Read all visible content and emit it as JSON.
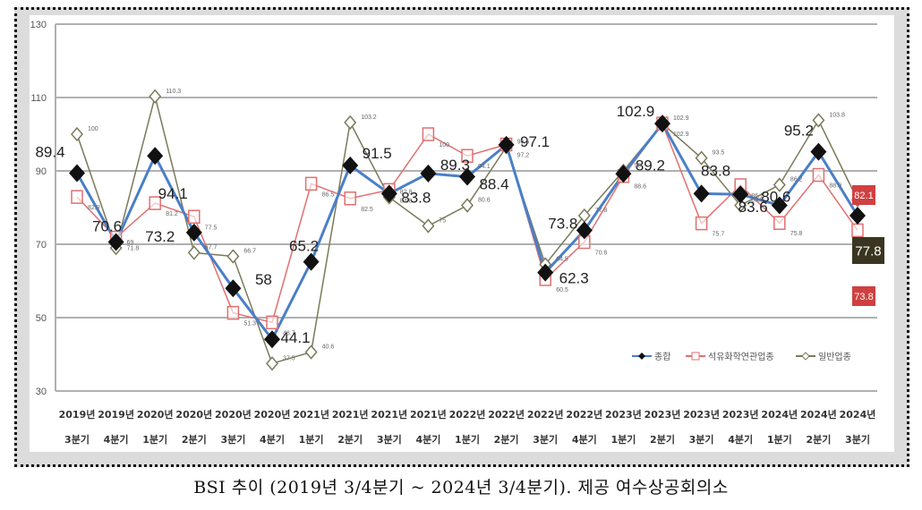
{
  "caption": "BSI 추이 (2019년 3/4분기 ~ 2024년 3/4분기). 제공 여수상공회의소",
  "colors": {
    "composite": "#4a7fc8",
    "petrochem": "#e07070",
    "general": "#7a7a5a",
    "marker_dark": "#111111",
    "badge_red": "#d04040",
    "badge_dark": "#3a3520",
    "grid": "#b0b0b0"
  },
  "chart_data": {
    "type": "line",
    "title": "",
    "xlabel": "",
    "ylabel": "",
    "ylim": [
      30,
      130
    ],
    "yticks": [
      30,
      50,
      70,
      90,
      110,
      130
    ],
    "grid": true,
    "legend_position": "lower-right inside plot",
    "categories": [
      [
        "2019년",
        "3분기"
      ],
      [
        "2019년",
        "4분기"
      ],
      [
        "2020년",
        "1분기"
      ],
      [
        "2020년",
        "2분기"
      ],
      [
        "2020년",
        "3분기"
      ],
      [
        "2020년",
        "4분기"
      ],
      [
        "2021년",
        "1분기"
      ],
      [
        "2021년",
        "2분기"
      ],
      [
        "2021년",
        "3분기"
      ],
      [
        "2021년",
        "4분기"
      ],
      [
        "2022년",
        "1분기"
      ],
      [
        "2022년",
        "2분기"
      ],
      [
        "2022년",
        "3분기"
      ],
      [
        "2022년",
        "4분기"
      ],
      [
        "2023년",
        "1분기"
      ],
      [
        "2023년",
        "2분기"
      ],
      [
        "2023년",
        "3분기"
      ],
      [
        "2023년",
        "4분기"
      ],
      [
        "2024년",
        "1분기"
      ],
      [
        "2024년",
        "2분기"
      ],
      [
        "2024년",
        "3분기"
      ]
    ],
    "series": [
      {
        "name": "종합",
        "marker": "filled-diamond",
        "values": [
          89.4,
          70.6,
          94.1,
          73.2,
          58,
          44.1,
          65.2,
          91.5,
          83.8,
          89.3,
          88.4,
          97.1,
          62.3,
          73.8,
          89.2,
          102.9,
          83.8,
          83.6,
          80.6,
          95.2,
          77.8
        ]
      },
      {
        "name": "석유화학연관업종",
        "marker": "open-square",
        "values": [
          82.9,
          71.8,
          81.2,
          77.5,
          51.3,
          48.7,
          86.5,
          82.5,
          84.8,
          100,
          94.1,
          97.2,
          60.5,
          70.6,
          88.6,
          102.9,
          75.7,
          86.1,
          75.8,
          88.9,
          73.8
        ]
      },
      {
        "name": "일반업종",
        "marker": "open-diamond",
        "values": [
          100,
          69,
          110.3,
          67.7,
          66.7,
          37.5,
          40.6,
          103.2,
          82.8,
          75,
          80.6,
          96.5,
          64.5,
          77.8,
          90,
          102.9,
          93.5,
          80.6,
          86.2,
          103.8,
          82.1
        ]
      }
    ],
    "end_badges": {
      "general": "82.1",
      "composite": "77.8",
      "petrochem": "73.8"
    }
  }
}
